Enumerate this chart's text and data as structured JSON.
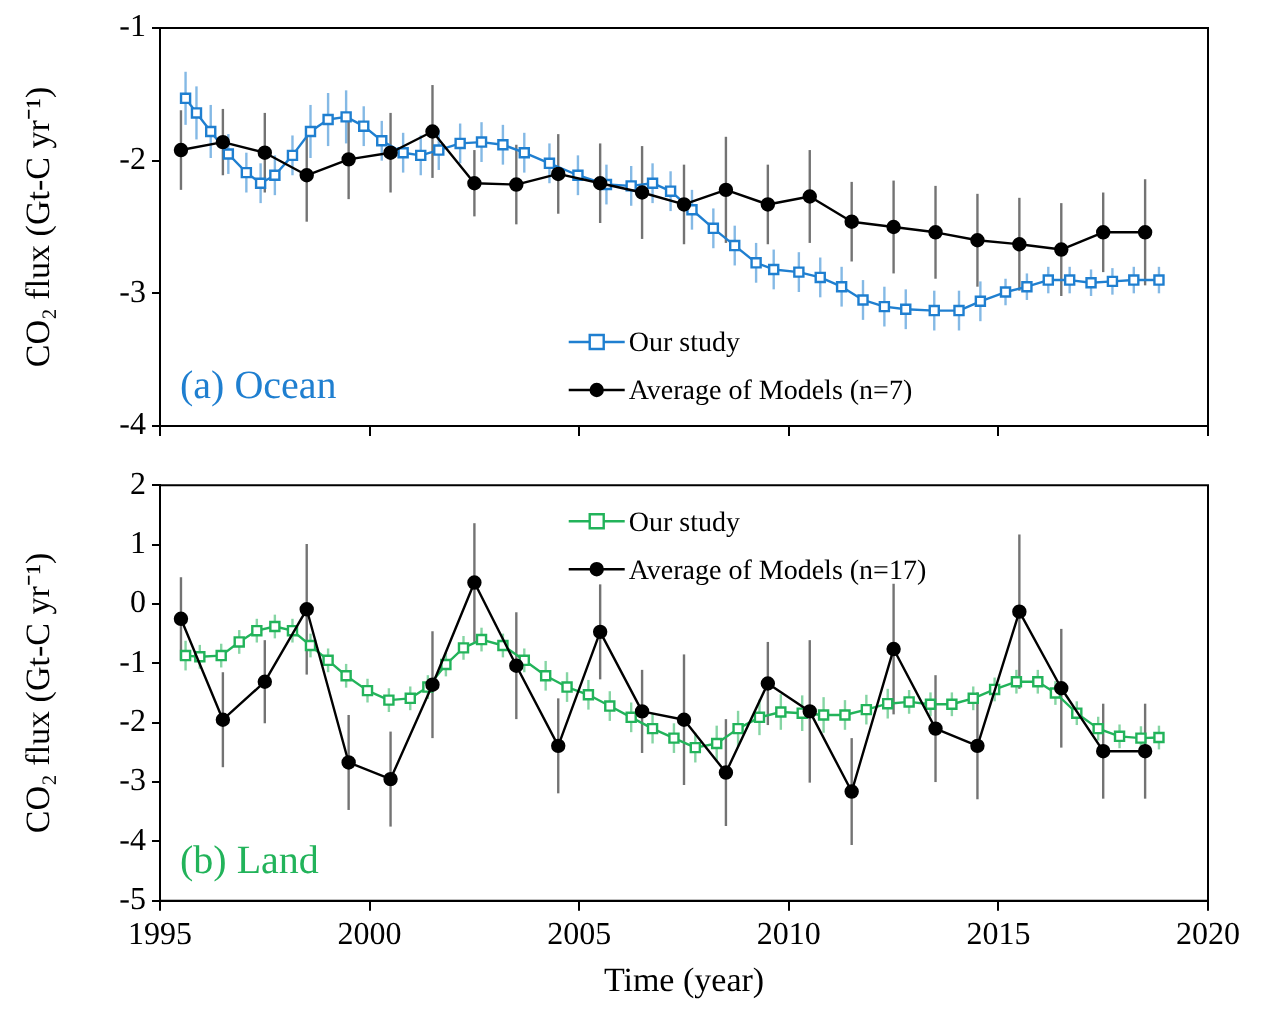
{
  "chart_data": [
    {
      "type": "line",
      "ylabel": "CO₂ flux (Gt-C yr⁻¹)",
      "annotations": [
        "(a) Ocean"
      ],
      "xlim": [
        1995,
        2020
      ],
      "xticks": [
        1995,
        2000,
        2005,
        2010,
        2015,
        2020
      ],
      "ylim": [
        -4,
        -1
      ],
      "yticks": [
        -4,
        -3,
        -2,
        -1
      ],
      "tick_labels": "y",
      "grid": false,
      "legend": "bottom",
      "series": [
        {
          "name": "Our study",
          "color": "#1f7fd0",
          "marker": "square",
          "x": [
            1995.61,
            1995.87,
            1996.21,
            1996.63,
            1997.06,
            1997.4,
            1997.74,
            1998.16,
            1998.59,
            1999.01,
            1999.44,
            1999.86,
            2000.29,
            2000.8,
            2001.22,
            2001.65,
            2002.16,
            2002.67,
            2003.18,
            2003.69,
            2004.29,
            2004.97,
            2005.65,
            2006.24,
            2006.75,
            2007.18,
            2007.69,
            2008.2,
            2008.71,
            2009.22,
            2009.64,
            2010.24,
            2010.75,
            2011.26,
            2011.77,
            2012.28,
            2012.79,
            2013.47,
            2014.06,
            2014.57,
            2015.17,
            2015.68,
            2016.19,
            2016.7,
            2017.21,
            2017.72,
            2018.23,
            2018.83
          ],
          "values": [
            -1.53,
            -1.64,
            -1.78,
            -1.95,
            -2.09,
            -2.17,
            -2.11,
            -1.96,
            -1.78,
            -1.69,
            -1.67,
            -1.74,
            -1.85,
            -1.94,
            -1.96,
            -1.92,
            -1.87,
            -1.86,
            -1.88,
            -1.94,
            -2.02,
            -2.11,
            -2.18,
            -2.19,
            -2.17,
            -2.23,
            -2.37,
            -2.51,
            -2.64,
            -2.77,
            -2.82,
            -2.84,
            -2.88,
            -2.95,
            -3.05,
            -3.1,
            -3.12,
            -3.13,
            -3.13,
            -3.06,
            -2.99,
            -2.95,
            -2.9,
            -2.9,
            -2.92,
            -2.91,
            -2.9,
            -2.9
          ],
          "errors": [
            0.2,
            0.2,
            0.2,
            0.15,
            0.15,
            0.15,
            0.15,
            0.15,
            0.2,
            0.2,
            0.2,
            0.15,
            0.15,
            0.15,
            0.15,
            0.15,
            0.15,
            0.15,
            0.15,
            0.15,
            0.15,
            0.15,
            0.15,
            0.15,
            0.15,
            0.15,
            0.15,
            0.15,
            0.15,
            0.15,
            0.15,
            0.15,
            0.15,
            0.15,
            0.15,
            0.15,
            0.15,
            0.15,
            0.15,
            0.15,
            0.1,
            0.1,
            0.1,
            0.1,
            0.1,
            0.1,
            0.1,
            0.1
          ]
        },
        {
          "name": "Average of Models (n=7)",
          "color": "#000000",
          "marker": "circle",
          "x": [
            1995.5,
            1996.5,
            1997.5,
            1998.5,
            1999.5,
            2000.5,
            2001.5,
            2002.5,
            2003.5,
            2004.5,
            2005.5,
            2006.5,
            2007.5,
            2008.5,
            2009.5,
            2010.5,
            2011.5,
            2012.5,
            2013.5,
            2014.5,
            2015.5,
            2016.5,
            2017.5,
            2018.5
          ],
          "values": [
            -1.92,
            -1.86,
            -1.94,
            -2.11,
            -1.99,
            -1.94,
            -1.78,
            -2.17,
            -2.18,
            -2.1,
            -2.17,
            -2.24,
            -2.33,
            -2.22,
            -2.33,
            -2.27,
            -2.46,
            -2.5,
            -2.54,
            -2.6,
            -2.63,
            -2.67,
            -2.54,
            -2.54
          ],
          "errors": [
            0.3,
            0.25,
            0.3,
            0.35,
            0.3,
            0.3,
            0.35,
            0.25,
            0.3,
            0.3,
            0.3,
            0.35,
            0.3,
            0.4,
            0.3,
            0.35,
            0.3,
            0.35,
            0.35,
            0.35,
            0.35,
            0.35,
            0.3,
            0.4
          ]
        }
      ]
    },
    {
      "type": "line",
      "ylabel": "CO₂ flux (Gt-C yr⁻¹)",
      "xlabel": "Time (year)",
      "annotations": [
        "(b) Land"
      ],
      "xlim": [
        1995,
        2020
      ],
      "xticks": [
        1995,
        2000,
        2005,
        2010,
        2015,
        2020
      ],
      "ylim": [
        -5,
        2
      ],
      "yticks": [
        -5,
        -4,
        -3,
        -2,
        -1,
        0,
        1,
        2
      ],
      "grid": false,
      "legend": "top",
      "series": [
        {
          "name": "Our study",
          "color": "#22b35a",
          "marker": "square",
          "x": [
            1995.61,
            1995.95,
            1996.46,
            1996.89,
            1997.31,
            1997.74,
            1998.16,
            1998.59,
            1999.01,
            1999.44,
            1999.95,
            2000.46,
            2000.97,
            2001.39,
            2001.82,
            2002.24,
            2002.67,
            2003.18,
            2003.69,
            2004.2,
            2004.71,
            2005.22,
            2005.73,
            2006.24,
            2006.75,
            2007.26,
            2007.77,
            2008.28,
            2008.79,
            2009.3,
            2009.81,
            2010.32,
            2010.83,
            2011.34,
            2011.85,
            2012.36,
            2012.87,
            2013.38,
            2013.89,
            2014.4,
            2014.91,
            2015.43,
            2015.94,
            2016.36,
            2016.87,
            2017.38,
            2017.89,
            2018.4,
            2018.83
          ],
          "values": [
            -0.87,
            -0.89,
            -0.87,
            -0.64,
            -0.45,
            -0.38,
            -0.45,
            -0.7,
            -0.95,
            -1.21,
            -1.46,
            -1.62,
            -1.59,
            -1.4,
            -1.02,
            -0.74,
            -0.6,
            -0.7,
            -0.95,
            -1.21,
            -1.4,
            -1.53,
            -1.72,
            -1.91,
            -2.1,
            -2.26,
            -2.42,
            -2.35,
            -2.1,
            -1.91,
            -1.82,
            -1.84,
            -1.87,
            -1.87,
            -1.78,
            -1.68,
            -1.65,
            -1.69,
            -1.69,
            -1.59,
            -1.44,
            -1.31,
            -1.31,
            -1.5,
            -1.84,
            -2.1,
            -2.23,
            -2.26,
            -2.25
          ],
          "errors": [
            0.25,
            0.2,
            0.2,
            0.2,
            0.2,
            0.2,
            0.2,
            0.2,
            0.2,
            0.2,
            0.2,
            0.2,
            0.2,
            0.2,
            0.2,
            0.2,
            0.2,
            0.2,
            0.2,
            0.25,
            0.25,
            0.25,
            0.25,
            0.25,
            0.25,
            0.25,
            0.25,
            0.3,
            0.3,
            0.3,
            0.3,
            0.3,
            0.3,
            0.25,
            0.25,
            0.25,
            0.2,
            0.2,
            0.2,
            0.2,
            0.2,
            0.2,
            0.2,
            0.2,
            0.2,
            0.2,
            0.2,
            0.2,
            0.2
          ]
        },
        {
          "name": "Average of Models (n=17)",
          "color": "#000000",
          "marker": "circle",
          "x": [
            1995.5,
            1996.5,
            1997.5,
            1998.5,
            1999.5,
            2000.5,
            2001.5,
            2002.5,
            2003.5,
            2004.5,
            2005.5,
            2006.5,
            2007.5,
            2008.5,
            2009.5,
            2010.5,
            2011.5,
            2012.5,
            2013.5,
            2014.5,
            2015.5,
            2016.5,
            2017.5,
            2018.5
          ],
          "values": [
            -0.25,
            -1.95,
            -1.31,
            -0.09,
            -2.67,
            -2.95,
            -1.36,
            0.36,
            -1.04,
            -2.39,
            -0.47,
            -1.81,
            -1.95,
            -2.84,
            -1.34,
            -1.81,
            -3.16,
            -0.76,
            -2.1,
            -2.39,
            -0.13,
            -1.42,
            -2.48,
            -2.48
          ],
          "errors": [
            0.7,
            0.8,
            0.7,
            1.1,
            0.8,
            0.8,
            0.9,
            1.0,
            0.9,
            0.8,
            0.8,
            0.7,
            1.1,
            0.9,
            0.7,
            1.2,
            0.9,
            1.1,
            0.9,
            0.9,
            1.3,
            1.0,
            0.8,
            0.8
          ]
        }
      ]
    }
  ]
}
